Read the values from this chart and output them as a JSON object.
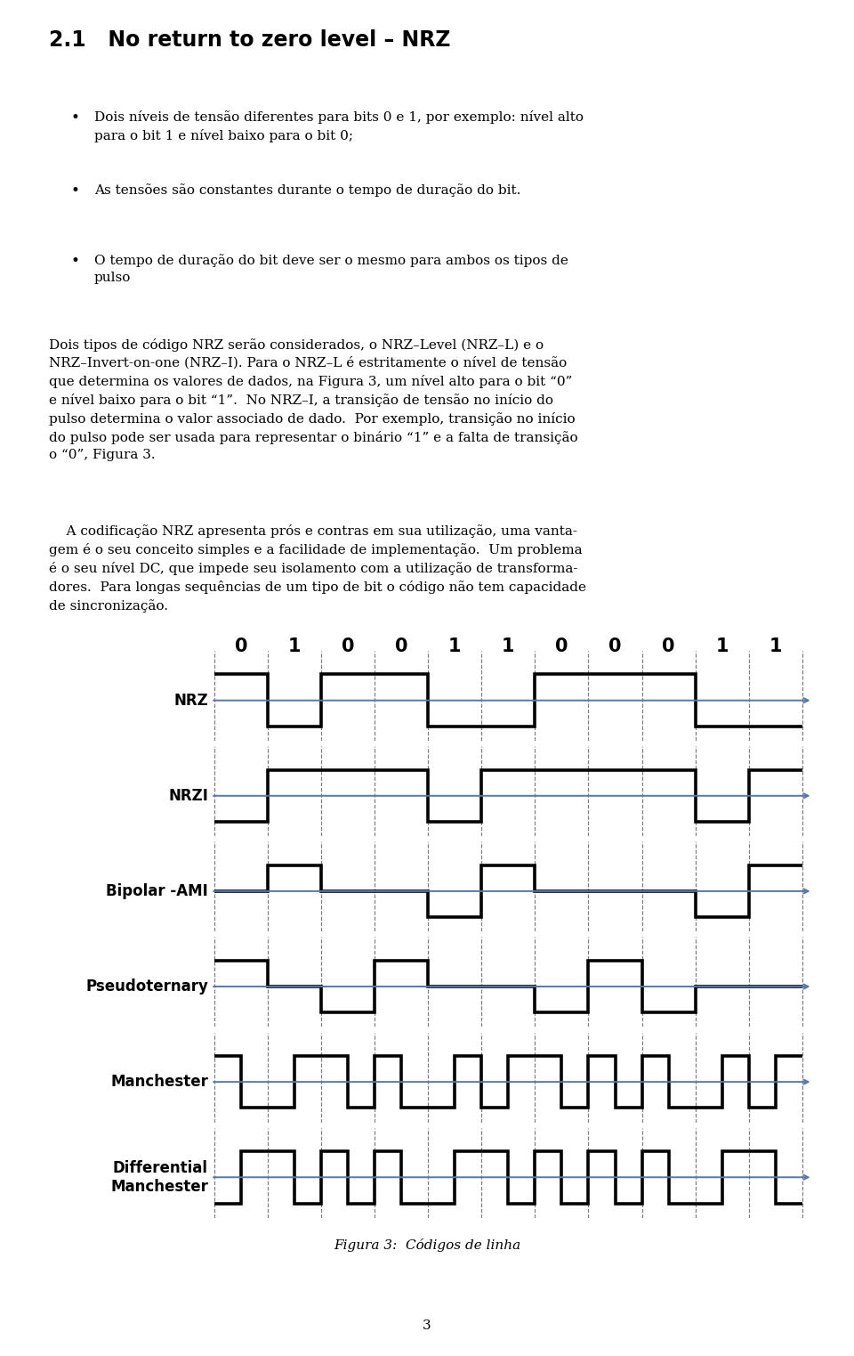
{
  "bits": [
    0,
    1,
    0,
    0,
    1,
    1,
    0,
    0,
    0,
    1,
    1
  ],
  "background_color": "#ffffff",
  "waveform_color": "#000000",
  "arrow_color": "#5577aa",
  "caption": "Figura 3:  Códigos de linha",
  "labels": [
    "NRZ",
    "NRZI",
    "Bipolar -AMI",
    "Pseudoternary",
    "Manchester",
    "Differential\nManchester"
  ],
  "caption_fontsize": 11,
  "label_fontsize": 12,
  "bit_fontsize": 15,
  "waveform_lw": 2.6,
  "page_number": "3",
  "title_text": "2.1   No return to zero level – NRZ",
  "title_fontsize": 17,
  "body_fontsize": 11,
  "bullet1": "Dois níveis de tensão diferentes para bits 0 e 1, por exemplo: nível alto\npara o bit 1 e nível baixo para o bit 0;",
  "bullet2": "As tensões são constantes durante o tempo de duração do bit.",
  "bullet3": "O tempo de duração do bit deve ser o mesmo para ambos os tipos de\npulso",
  "para1": "Dois tipos de código NRZ serão considerados, o NRZ–Level (NRZ–L) e o\nNRZ–Invert-on-one (NRZ–I). Para o NRZ–L é estritamente o nível de tensão\nque determina os valores de dados, na Figura 3, um nível alto para o bit “0”\ne nível baixo para o bit “1”.  No NRZ–I, a transição de tensão no início do\npulso determina o valor associado de dado.  Por exemplo, transição no início\ndo pulso pode ser usada para representar o binário “1” e a falta de transição\no “0”, Figura 3.",
  "para2": "    A codificação NRZ apresenta prós e contras em sua utilização, uma vanta-\ngem é o seu conceito simples e a facilidade de implementação.  Um problema\né o seu nível DC, que impede seu isolamento com a utilização de transforma-\ndores.  Para longas sequências de um tipo de bit o código não tem capacidade\nde sincronização."
}
